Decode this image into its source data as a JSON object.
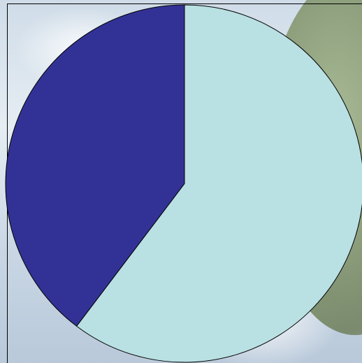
{
  "chart_data": {
    "type": "pie",
    "title": "",
    "start_angle_deg": 90,
    "direction": "clockwise",
    "slices": [
      {
        "value": 0.603,
        "color": "#b9e0e3"
      },
      {
        "value": 0.397,
        "color": "#323296"
      }
    ]
  },
  "colors": {
    "background_sky": "#dfe7ee",
    "hill": "#7f9167",
    "slice_outline": "#000000"
  }
}
